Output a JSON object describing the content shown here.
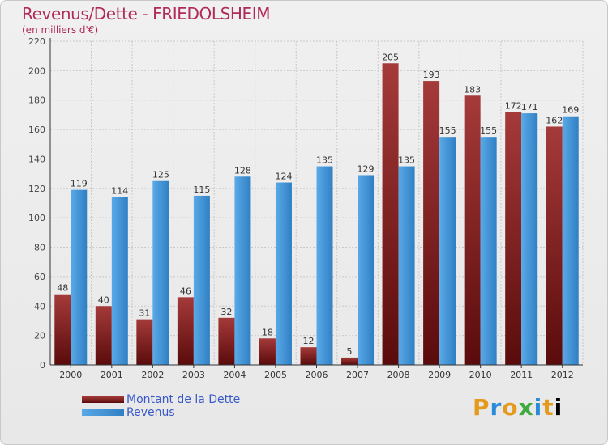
{
  "header": {
    "title": "Revenus/Dette - FRIEDOLSHEIM",
    "subtitle": "(en milliers d'€)"
  },
  "legend": {
    "items": [
      {
        "label": "Montant de la Dette",
        "color": "#7a1a1a"
      },
      {
        "label": "Revenus",
        "color": "#3d93dc"
      }
    ]
  },
  "logo": {
    "letters": [
      "P",
      "r",
      "o",
      "x",
      "i",
      "t",
      "i"
    ]
  },
  "colors": {
    "debt_top": "#a53a3a",
    "debt_bottom": "#5a0b0b",
    "revenue_left": "#5aaae8",
    "revenue_right": "#2f7fc4",
    "title": "#b02a5a",
    "legend_text": "#3a58c8"
  },
  "chart_data": {
    "type": "bar",
    "title": "Revenus/Dette - FRIEDOLSHEIM",
    "subtitle": "(en milliers d'€)",
    "categories": [
      "2000",
      "2001",
      "2002",
      "2003",
      "2004",
      "2005",
      "2006",
      "2007",
      "2008",
      "2009",
      "2010",
      "2011",
      "2012"
    ],
    "series": [
      {
        "name": "Montant de la Dette",
        "values": [
          48,
          40,
          31,
          46,
          32,
          18,
          12,
          5,
          205,
          193,
          183,
          172,
          162
        ]
      },
      {
        "name": "Revenus",
        "values": [
          119,
          114,
          125,
          115,
          128,
          124,
          135,
          129,
          135,
          155,
          155,
          171,
          169
        ]
      }
    ],
    "yticks": [
      0,
      20,
      40,
      60,
      80,
      100,
      120,
      140,
      160,
      180,
      200,
      220
    ],
    "ylim": [
      0,
      220
    ],
    "grid": true,
    "legend_position": "bottom-left"
  }
}
